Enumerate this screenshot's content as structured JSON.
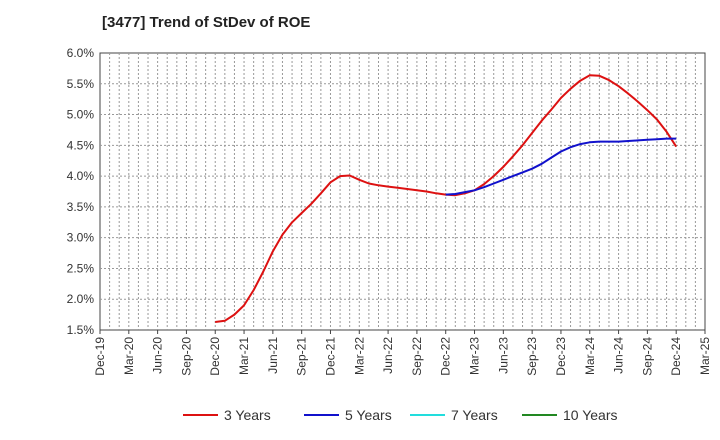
{
  "chart_data": {
    "type": "line",
    "title": "[3477]  Trend of StDev of ROE",
    "xlabel": "",
    "ylabel": "",
    "x_ticks": [
      "Dec-19",
      "Mar-20",
      "Jun-20",
      "Sep-20",
      "Dec-20",
      "Mar-21",
      "Jun-21",
      "Sep-21",
      "Dec-21",
      "Mar-22",
      "Jun-22",
      "Sep-22",
      "Dec-22",
      "Mar-23",
      "Jun-23",
      "Sep-23",
      "Dec-23",
      "Mar-24",
      "Jun-24",
      "Sep-24",
      "Dec-24",
      "Mar-25"
    ],
    "y_ticks": [
      "1.5%",
      "2.0%",
      "2.5%",
      "3.0%",
      "3.5%",
      "4.0%",
      "4.5%",
      "5.0%",
      "5.5%",
      "6.0%"
    ],
    "ylim": [
      1.5,
      6.0
    ],
    "grid": true,
    "legend_position": "bottom",
    "series": [
      {
        "name": "3 Years",
        "color": "#dd1111",
        "points": [
          [
            "Dec-20",
            1.63
          ],
          [
            "Jan-21",
            1.65
          ],
          [
            "Feb-21",
            1.75
          ],
          [
            "Mar-21",
            1.9
          ],
          [
            "Apr-21",
            2.15
          ],
          [
            "May-21",
            2.45
          ],
          [
            "Jun-21",
            2.78
          ],
          [
            "Jul-21",
            3.05
          ],
          [
            "Aug-21",
            3.25
          ],
          [
            "Sep-21",
            3.4
          ],
          [
            "Oct-21",
            3.55
          ],
          [
            "Nov-21",
            3.72
          ],
          [
            "Dec-21",
            3.9
          ],
          [
            "Jan-22",
            4.0
          ],
          [
            "Feb-22",
            4.01
          ],
          [
            "Mar-22",
            3.94
          ],
          [
            "Apr-22",
            3.88
          ],
          [
            "May-22",
            3.85
          ],
          [
            "Jun-22",
            3.83
          ],
          [
            "Jul-22",
            3.81
          ],
          [
            "Aug-22",
            3.79
          ],
          [
            "Sep-22",
            3.77
          ],
          [
            "Oct-22",
            3.75
          ],
          [
            "Nov-22",
            3.72
          ],
          [
            "Dec-22",
            3.7
          ],
          [
            "Jan-23",
            3.69
          ],
          [
            "Feb-23",
            3.72
          ],
          [
            "Mar-23",
            3.77
          ],
          [
            "Apr-23",
            3.87
          ],
          [
            "May-23",
            4.0
          ],
          [
            "Jun-23",
            4.15
          ],
          [
            "Jul-23",
            4.32
          ],
          [
            "Aug-23",
            4.5
          ],
          [
            "Sep-23",
            4.7
          ],
          [
            "Oct-23",
            4.9
          ],
          [
            "Nov-23",
            5.08
          ],
          [
            "Dec-23",
            5.27
          ],
          [
            "Jan-24",
            5.42
          ],
          [
            "Feb-24",
            5.55
          ],
          [
            "Mar-24",
            5.64
          ],
          [
            "Apr-24",
            5.63
          ],
          [
            "May-24",
            5.56
          ],
          [
            "Jun-24",
            5.46
          ],
          [
            "Jul-24",
            5.34
          ],
          [
            "Aug-24",
            5.21
          ],
          [
            "Sep-24",
            5.07
          ],
          [
            "Oct-24",
            4.92
          ],
          [
            "Nov-24",
            4.72
          ],
          [
            "Dec-24",
            4.48
          ]
        ]
      },
      {
        "name": "5 Years",
        "color": "#1111cc",
        "points": [
          [
            "Dec-22",
            3.7
          ],
          [
            "Jan-23",
            3.71
          ],
          [
            "Feb-23",
            3.74
          ],
          [
            "Mar-23",
            3.77
          ],
          [
            "Apr-23",
            3.82
          ],
          [
            "May-23",
            3.88
          ],
          [
            "Jun-23",
            3.94
          ],
          [
            "Jul-23",
            4.0
          ],
          [
            "Aug-23",
            4.06
          ],
          [
            "Sep-23",
            4.12
          ],
          [
            "Oct-23",
            4.2
          ],
          [
            "Nov-23",
            4.3
          ],
          [
            "Dec-23",
            4.4
          ],
          [
            "Jan-24",
            4.47
          ],
          [
            "Feb-24",
            4.52
          ],
          [
            "Mar-24",
            4.55
          ],
          [
            "Apr-24",
            4.56
          ],
          [
            "May-24",
            4.56
          ],
          [
            "Jun-24",
            4.56
          ],
          [
            "Jul-24",
            4.57
          ],
          [
            "Aug-24",
            4.58
          ],
          [
            "Sep-24",
            4.59
          ],
          [
            "Oct-24",
            4.6
          ],
          [
            "Nov-24",
            4.61
          ],
          [
            "Dec-24",
            4.61
          ]
        ]
      },
      {
        "name": "7 Years",
        "color": "#22dddd",
        "points": []
      },
      {
        "name": "10 Years",
        "color": "#228822",
        "points": []
      }
    ]
  }
}
